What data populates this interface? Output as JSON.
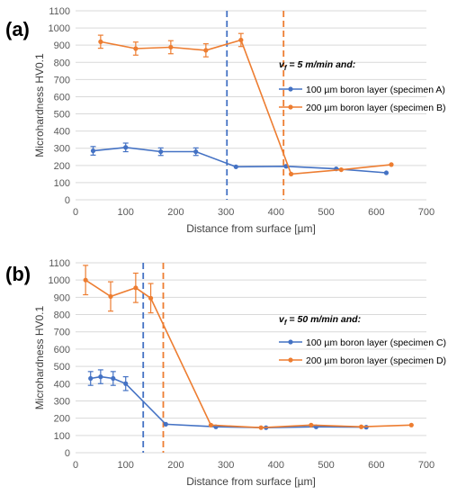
{
  "colors": {
    "blue": "#4472C4",
    "orange": "#ED7D31"
  },
  "chart_data": [
    {
      "type": "line",
      "panel_label": "(a)",
      "xlabel": "Distance from surface [µm]",
      "ylabel": "Microhardness HV0.1",
      "xlim": [
        0,
        700
      ],
      "ylim": [
        0,
        1100
      ],
      "xticks": [
        0,
        100,
        200,
        300,
        400,
        500,
        600,
        700
      ],
      "yticks": [
        0,
        100,
        200,
        300,
        400,
        500,
        600,
        700,
        800,
        900,
        1000,
        1100
      ],
      "grid": "horizontal",
      "legend_position": "right",
      "legend_header": {
        "v": "v",
        "sub": "f",
        "rest": " = 5 m/min and:"
      },
      "series": [
        {
          "name": "100 µm boron layer (specimen A)",
          "color": "#4472C4",
          "x": [
            35,
            100,
            170,
            240,
            320,
            420,
            520,
            620
          ],
          "y": [
            285,
            305,
            280,
            280,
            192,
            195,
            180,
            157
          ],
          "err": [
            25,
            25,
            22,
            22,
            0,
            0,
            0,
            0
          ]
        },
        {
          "name": "200 µm boron layer (specimen B)",
          "color": "#ED7D31",
          "x": [
            50,
            120,
            190,
            260,
            330,
            430,
            530,
            630
          ],
          "y": [
            920,
            880,
            888,
            870,
            930,
            150,
            175,
            205
          ],
          "err": [
            38,
            38,
            38,
            38,
            38,
            0,
            0,
            0
          ]
        }
      ],
      "vlines": [
        {
          "x": 302,
          "color": "#4472C4"
        },
        {
          "x": 415,
          "color": "#ED7D31"
        }
      ]
    },
    {
      "type": "line",
      "panel_label": "(b)",
      "xlabel": "Distance from surface [µm]",
      "ylabel": "Microhardness HV0.1",
      "xlim": [
        0,
        700
      ],
      "ylim": [
        0,
        1100
      ],
      "xticks": [
        0,
        100,
        200,
        300,
        400,
        500,
        600,
        700
      ],
      "yticks": [
        0,
        100,
        200,
        300,
        400,
        500,
        600,
        700,
        800,
        900,
        1000,
        1100
      ],
      "grid": "horizontal",
      "legend_position": "right",
      "legend_header": {
        "v": "v",
        "sub": "f",
        "rest": " = 50 m/min and:"
      },
      "series": [
        {
          "name": "100 µm boron layer (specimen C)",
          "color": "#4472C4",
          "x": [
            30,
            50,
            75,
            100,
            180,
            280,
            380,
            480,
            580
          ],
          "y": [
            430,
            440,
            430,
            400,
            165,
            150,
            145,
            150,
            148
          ],
          "err": [
            40,
            40,
            40,
            40,
            0,
            0,
            0,
            0,
            0
          ]
        },
        {
          "name": "200 µm boron layer (specimen D)",
          "color": "#ED7D31",
          "x": [
            20,
            70,
            120,
            150,
            270,
            370,
            470,
            570,
            670
          ],
          "y": [
            1000,
            905,
            955,
            895,
            160,
            145,
            160,
            150,
            160
          ],
          "err": [
            85,
            85,
            85,
            85,
            0,
            0,
            0,
            0,
            0
          ]
        }
      ],
      "vlines": [
        {
          "x": 135,
          "color": "#4472C4"
        },
        {
          "x": 175,
          "color": "#ED7D31"
        }
      ]
    }
  ]
}
